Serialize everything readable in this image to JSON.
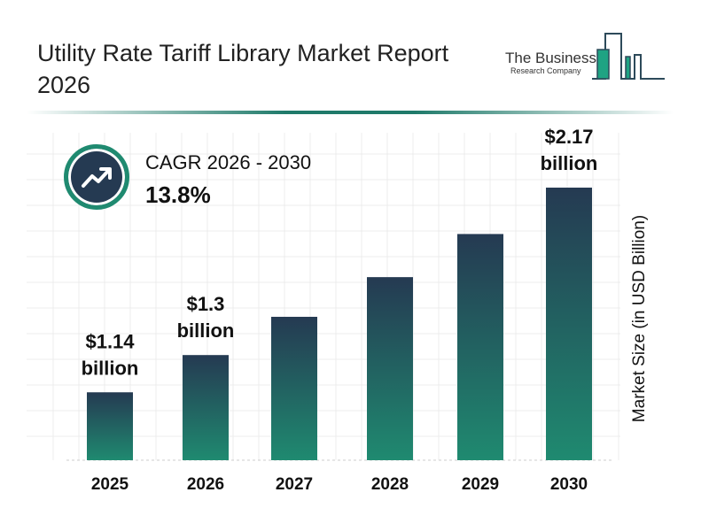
{
  "header": {
    "title": "Utility Rate Tariff Library Market Report 2026"
  },
  "logo": {
    "line1": "The Business",
    "line2": "Research Company"
  },
  "cagr": {
    "label": "CAGR 2026 - 2030",
    "value": "13.8%",
    "icon": "trend-up-arrow-icon"
  },
  "colors": {
    "bar_top": "#253a52",
    "bar_bottom": "#1f8a70",
    "accent": "#1f7a6a"
  },
  "chart_data": {
    "type": "bar",
    "title": "",
    "categories": [
      "2025",
      "2026",
      "2027",
      "2028",
      "2029",
      "2030"
    ],
    "values": [
      1.14,
      1.3,
      1.48,
      1.68,
      1.91,
      2.17
    ],
    "data_labels": [
      {
        "index": 0,
        "value": "$1.14",
        "unit": "billion"
      },
      {
        "index": 1,
        "value": "$1.3",
        "unit": "billion"
      },
      {
        "index": 5,
        "value": "$2.17",
        "unit": "billion"
      }
    ],
    "xlabel": "",
    "ylabel": "Market Size (in USD Billion)",
    "grid": true
  }
}
